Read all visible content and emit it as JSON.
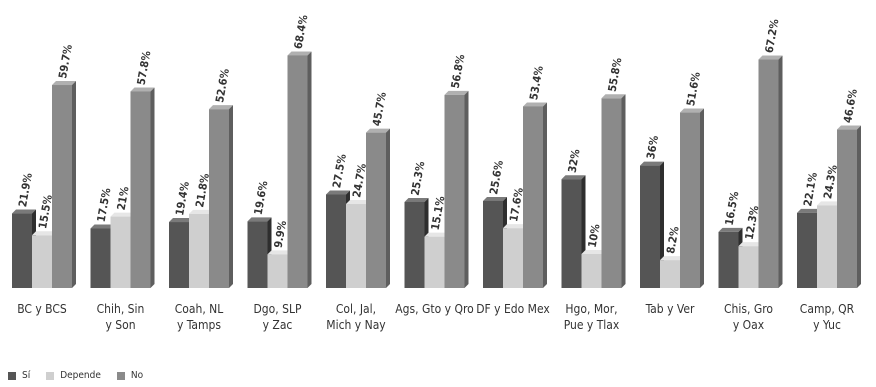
{
  "chart_data": {
    "type": "bar",
    "categories": [
      [
        "BC y BCS"
      ],
      [
        "Chih, Sin",
        "y Son"
      ],
      [
        "Coah, NL",
        "y Tamps"
      ],
      [
        "Dgo, SLP",
        "y Zac"
      ],
      [
        "Col, Jal,",
        "Mich y Nay"
      ],
      [
        "Ags, Gto y Qro"
      ],
      [
        "DF y Edo Mex"
      ],
      [
        "Hgo, Mor,",
        "Pue y Tlax"
      ],
      [
        "Tab y Ver"
      ],
      [
        "Chis, Gro",
        "y Oax"
      ],
      [
        "Camp, QR",
        "y Yuc"
      ]
    ],
    "series": [
      {
        "name": "Sí",
        "color": "#555555",
        "values": [
          21.9,
          17.5,
          19.4,
          19.6,
          27.5,
          25.3,
          25.6,
          32,
          36,
          16.5,
          22.1
        ],
        "labels": [
          "21.9%",
          "17.5%",
          "19.4%",
          "19.6%",
          "27.5%",
          "25.3%",
          "25.6%",
          "32%",
          "36%",
          "16.5%",
          "22.1%"
        ]
      },
      {
        "name": "Depende",
        "color": "#cfcfcf",
        "values": [
          15.5,
          21,
          21.8,
          9.9,
          24.7,
          15.1,
          17.6,
          10,
          8.2,
          12.3,
          24.3
        ],
        "labels": [
          "15.5%",
          "21%",
          "21.8%",
          "9.9%",
          "24.7%",
          "15.1%",
          "17.6%",
          "10%",
          "8.2%",
          "12.3%",
          "24.3%"
        ]
      },
      {
        "name": "No",
        "color": "#8a8a8a",
        "values": [
          59.7,
          57.8,
          52.6,
          68.4,
          45.7,
          56.8,
          53.4,
          55.8,
          51.6,
          67.2,
          46.6
        ],
        "labels": [
          "59.7%",
          "57.8%",
          "52.6%",
          "68.4%",
          "45.7%",
          "56.8%",
          "53.4%",
          "55.8%",
          "51.6%",
          "67.2%",
          "46.6%"
        ]
      }
    ],
    "ylim": [
      0,
      70
    ],
    "legend_position": "bottom-left",
    "grid": false
  }
}
